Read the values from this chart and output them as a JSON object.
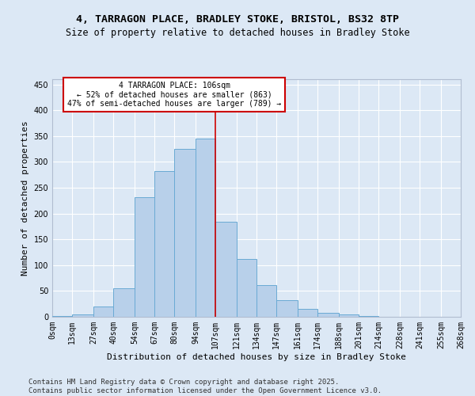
{
  "title_line1": "4, TARRAGON PLACE, BRADLEY STOKE, BRISTOL, BS32 8TP",
  "title_line2": "Size of property relative to detached houses in Bradley Stoke",
  "xlabel": "Distribution of detached houses by size in Bradley Stoke",
  "ylabel": "Number of detached properties",
  "bin_labels": [
    "0sqm",
    "13sqm",
    "27sqm",
    "40sqm",
    "54sqm",
    "67sqm",
    "80sqm",
    "94sqm",
    "107sqm",
    "121sqm",
    "134sqm",
    "147sqm",
    "161sqm",
    "174sqm",
    "188sqm",
    "201sqm",
    "214sqm",
    "228sqm",
    "241sqm",
    "255sqm",
    "268sqm"
  ],
  "bin_edges": [
    0,
    13,
    27,
    40,
    54,
    67,
    80,
    94,
    107,
    121,
    134,
    147,
    161,
    174,
    188,
    201,
    214,
    228,
    241,
    255,
    268
  ],
  "bar_heights": [
    2,
    5,
    20,
    55,
    232,
    282,
    325,
    345,
    184,
    112,
    62,
    32,
    16,
    8,
    4,
    1,
    0,
    0,
    0,
    0
  ],
  "bar_color": "#b8d0ea",
  "bar_edge_color": "#6aaad4",
  "highlight_color": "#cc0000",
  "annotation_text": "4 TARRAGON PLACE: 106sqm\n← 52% of detached houses are smaller (863)\n47% of semi-detached houses are larger (789) →",
  "annotation_box_color": "#ffffff",
  "annotation_box_edge_color": "#cc0000",
  "ylim": [
    0,
    460
  ],
  "yticks": [
    0,
    50,
    100,
    150,
    200,
    250,
    300,
    350,
    400,
    450
  ],
  "background_color": "#dce8f5",
  "plot_bg_color": "#dce8f5",
  "footer_text": "Contains HM Land Registry data © Crown copyright and database right 2025.\nContains public sector information licensed under the Open Government Licence v3.0.",
  "title_fontsize": 9.5,
  "subtitle_fontsize": 8.5,
  "axis_label_fontsize": 8,
  "tick_fontsize": 7,
  "annotation_fontsize": 7,
  "footer_fontsize": 6.5
}
